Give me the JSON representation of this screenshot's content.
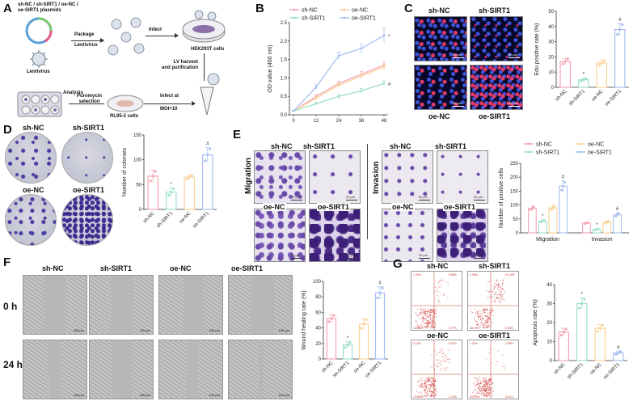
{
  "panels": {
    "A": {
      "label": "A",
      "plasmids": "sh-NC / sh-SIRT1 / oe-NC /\noe-SIRT1 plasmids",
      "package": "Package",
      "lentivirus_step": "Lentivirus",
      "lentivirus": "Lentivirus",
      "infect": "Infect",
      "hek": "HEK293T cells",
      "lv_harvest": "LV harvest\nand purification",
      "infect_at": "Infect at",
      "moi": "MOI=10",
      "puromycin": "Puromycin\nselection",
      "analysis": "Analysis",
      "rl": "RL95-2 cells"
    },
    "B": {
      "label": "B"
    },
    "C": {
      "label": "C",
      "img_labels": [
        "sh-NC",
        "sh-SIRT1",
        "oe-NC",
        "oe-SIRT1"
      ],
      "scale": "50 μm"
    },
    "D": {
      "label": "D",
      "img_labels": [
        "sh-NC",
        "sh-SIRT1",
        "oe-NC",
        "oe-SIRT1"
      ],
      "scale": "50 μm"
    },
    "E": {
      "label": "E",
      "row_migration": "Migration",
      "row_invasion": "Invasion",
      "img_labels": [
        "sh-NC",
        "sh-SIRT1",
        "oe-NC",
        "oe-SIRT1"
      ],
      "scale": "50 μm"
    },
    "F": {
      "label": "F",
      "col_labels": [
        "sh-NC",
        "sh-SIRT1",
        "oe-NC",
        "oe-SIRT1"
      ],
      "row_labels": [
        "0 h",
        "24 h"
      ],
      "scale": "100 μm"
    },
    "G": {
      "label": "G",
      "img_labels": [
        "sh-NC",
        "sh-SIRT1",
        "oe-NC",
        "oe-SIRT1"
      ],
      "quadrants": [
        [
          "1.35%",
          "5.86%",
          "14.48%",
          "0.77%"
        ],
        [
          "1.53%",
          "22.44%",
          "65.79%",
          "0.30%"
        ],
        [
          "0.12%",
          "8.51%",
          "74.89%",
          "1.14%"
        ],
        [
          "1.31%",
          "1.88%",
          "94.53%",
          "3.11%"
        ]
      ]
    }
  },
  "colors": {
    "sh-NC": "#f4a6b4",
    "sh-SIRT1": "#9fe0c8",
    "oe-NC": "#f8d29a",
    "oe-SIRT1": "#a9bff0"
  },
  "chart_data": [
    {
      "id": "B",
      "type": "line",
      "x": [
        0,
        12,
        24,
        36,
        48
      ],
      "xlim": [
        0,
        48
      ],
      "ylim": [
        0,
        2.5
      ],
      "yticks": [
        0,
        0.5,
        1.0,
        1.5,
        2.0,
        2.5
      ],
      "xlabel": "",
      "ylabel": "OD value (450 nm)",
      "legend": [
        "sh-NC",
        "oe-NC",
        "sh-SIRT1",
        "oe-SIRT1"
      ],
      "legend_position": "top",
      "series": [
        {
          "name": "sh-NC",
          "values": [
            0.1,
            0.5,
            0.85,
            1.1,
            1.35
          ],
          "err": [
            0.02,
            0.05,
            0.06,
            0.07,
            0.08
          ]
        },
        {
          "name": "oe-NC",
          "values": [
            0.1,
            0.45,
            0.8,
            1.05,
            1.3
          ],
          "err": [
            0.02,
            0.05,
            0.06,
            0.07,
            0.08
          ]
        },
        {
          "name": "sh-SIRT1",
          "values": [
            0.1,
            0.3,
            0.5,
            0.65,
            0.85
          ],
          "err": [
            0.02,
            0.04,
            0.05,
            0.06,
            0.07
          ]
        },
        {
          "name": "oe-SIRT1",
          "values": [
            0.1,
            0.75,
            1.6,
            1.8,
            2.15
          ],
          "err": [
            0.02,
            0.06,
            0.1,
            0.12,
            0.2
          ]
        }
      ],
      "annotations": [
        {
          "series": "oe-SIRT1",
          "x": 48,
          "text": "*"
        },
        {
          "series": "sh-SIRT1",
          "x": 48,
          "text": "#"
        }
      ]
    },
    {
      "id": "C",
      "type": "bar",
      "categories": [
        "sh-NC",
        "sh-SIRT1",
        "oe-NC",
        "oe-SIRT1"
      ],
      "values": [
        17,
        5,
        16,
        38
      ],
      "err": [
        2,
        1,
        2,
        4
      ],
      "ylim": [
        0,
        50
      ],
      "yticks": [
        0,
        10,
        20,
        30,
        40,
        50
      ],
      "ylabel": "Edu positive rate (%)",
      "marks": [
        "",
        "*",
        "",
        "#"
      ]
    },
    {
      "id": "D",
      "type": "bar",
      "categories": [
        "sh-NC",
        "sh-SIRT1",
        "oe-NC",
        "oe-SIRT1"
      ],
      "values": [
        67,
        35,
        65,
        110
      ],
      "err": [
        12,
        8,
        5,
        15
      ],
      "ylim": [
        0,
        150
      ],
      "yticks": [
        0,
        50,
        100,
        150
      ],
      "ylabel": "Number of colonies",
      "marks": [
        "",
        "*",
        "",
        "#"
      ]
    },
    {
      "id": "E",
      "type": "bar",
      "categories": [
        "Migration",
        "Invasion"
      ],
      "ylim": [
        0,
        250
      ],
      "yticks": [
        0,
        50,
        100,
        150,
        200,
        250
      ],
      "ylabel": "Number of positive cells",
      "legend": [
        "sh-NC",
        "oe-NC",
        "sh-SIRT1",
        "oe-SIRT1"
      ],
      "legend_position": "top",
      "series": [
        {
          "name": "sh-NC",
          "values": [
            88,
            35
          ],
          "err": [
            8,
            3
          ]
        },
        {
          "name": "sh-SIRT1",
          "values": [
            42,
            12
          ],
          "err": [
            5,
            3
          ]
        },
        {
          "name": "oe-NC",
          "values": [
            90,
            38
          ],
          "err": [
            9,
            5
          ]
        },
        {
          "name": "oe-SIRT1",
          "values": [
            168,
            65
          ],
          "err": [
            20,
            8
          ]
        }
      ],
      "marks": [
        [
          "",
          "*",
          "",
          "#"
        ],
        [
          "",
          "*",
          "",
          "#"
        ]
      ]
    },
    {
      "id": "F",
      "type": "bar",
      "categories": [
        "sh-NC",
        "sh-SIRT1",
        "oe-NC",
        "oe-SIRT1"
      ],
      "values": [
        52,
        18,
        45,
        85
      ],
      "err": [
        5,
        4,
        7,
        8
      ],
      "ylim": [
        0,
        100
      ],
      "yticks": [
        0,
        20,
        40,
        60,
        80,
        100
      ],
      "ylabel": "Wound healing rate (%)",
      "marks": [
        "",
        "*",
        "",
        "#"
      ]
    },
    {
      "id": "G",
      "type": "bar",
      "categories": [
        "sh-NC",
        "sh-SIRT1",
        "oe-NC",
        "oe-SIRT1"
      ],
      "values": [
        15,
        30,
        17,
        4
      ],
      "err": [
        2,
        3,
        2,
        1
      ],
      "ylim": [
        0,
        40
      ],
      "yticks": [
        0,
        10,
        20,
        30,
        40
      ],
      "ylabel": "Apoptosis rate (%)",
      "marks": [
        "",
        "*",
        "",
        "#"
      ]
    }
  ]
}
